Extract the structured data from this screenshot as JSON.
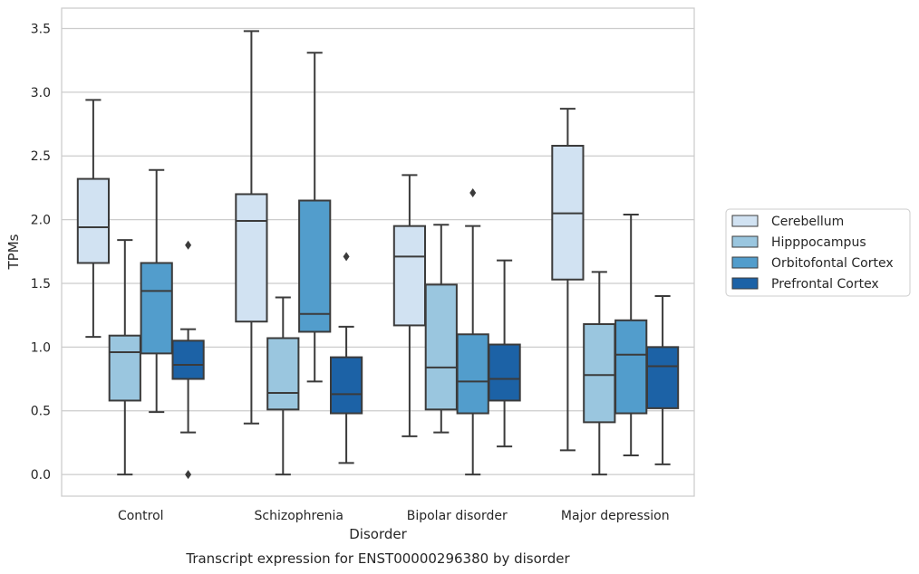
{
  "chart_data": {
    "type": "boxplot",
    "caption": "Transcript expression for ENST00000296380 by disorder",
    "xlabel": "Disorder",
    "ylabel": "TPMs",
    "ylim": [
      -0.17,
      3.66
    ],
    "yticks": [
      0.0,
      0.5,
      1.0,
      1.5,
      2.0,
      2.5,
      3.0,
      3.5
    ],
    "ytick_labels": [
      "0.0",
      "0.5",
      "1.0",
      "1.5",
      "2.0",
      "2.5",
      "3.0",
      "3.5"
    ],
    "grid": "horizontal",
    "legend_position": "outside-right",
    "categories": [
      "Control",
      "Schizophrenia",
      "Bipolar disorder",
      "Major depression"
    ],
    "series": [
      {
        "name": "Cerebellum",
        "color": "#d1e2f2",
        "boxes": [
          {
            "whislo": 1.08,
            "q1": 1.66,
            "med": 1.94,
            "q3": 2.32,
            "whishi": 2.94,
            "fliers": []
          },
          {
            "whislo": 0.4,
            "q1": 1.2,
            "med": 1.99,
            "q3": 2.2,
            "whishi": 3.48,
            "fliers": []
          },
          {
            "whislo": 0.3,
            "q1": 1.17,
            "med": 1.71,
            "q3": 1.95,
            "whishi": 2.35,
            "fliers": []
          },
          {
            "whislo": 0.19,
            "q1": 1.53,
            "med": 2.05,
            "q3": 2.58,
            "whishi": 2.87,
            "fliers": []
          }
        ]
      },
      {
        "name": "Hipppocampus",
        "color": "#9ac6df",
        "boxes": [
          {
            "whislo": 0.0,
            "q1": 0.58,
            "med": 0.96,
            "q3": 1.09,
            "whishi": 1.84,
            "fliers": []
          },
          {
            "whislo": 0.0,
            "q1": 0.51,
            "med": 0.64,
            "q3": 1.07,
            "whishi": 1.39,
            "fliers": []
          },
          {
            "whislo": 0.33,
            "q1": 0.51,
            "med": 0.84,
            "q3": 1.49,
            "whishi": 1.96,
            "fliers": []
          },
          {
            "whislo": 0.0,
            "q1": 0.41,
            "med": 0.78,
            "q3": 1.18,
            "whishi": 1.59,
            "fliers": []
          }
        ]
      },
      {
        "name": "Orbitofontal Cortex",
        "color": "#529dcc",
        "boxes": [
          {
            "whislo": 0.49,
            "q1": 0.95,
            "med": 1.44,
            "q3": 1.66,
            "whishi": 2.39,
            "fliers": []
          },
          {
            "whislo": 0.73,
            "q1": 1.12,
            "med": 1.26,
            "q3": 2.15,
            "whishi": 3.31,
            "fliers": []
          },
          {
            "whislo": 0.0,
            "q1": 0.48,
            "med": 0.73,
            "q3": 1.1,
            "whishi": 1.95,
            "fliers": [
              2.21
            ]
          },
          {
            "whislo": 0.15,
            "q1": 0.48,
            "med": 0.94,
            "q3": 1.21,
            "whishi": 2.04,
            "fliers": []
          }
        ]
      },
      {
        "name": "Prefrontal Cortex",
        "color": "#1c62a6",
        "boxes": [
          {
            "whislo": 0.33,
            "q1": 0.75,
            "med": 0.86,
            "q3": 1.05,
            "whishi": 1.14,
            "fliers": [
              1.8,
              0.0
            ]
          },
          {
            "whislo": 0.09,
            "q1": 0.48,
            "med": 0.63,
            "q3": 0.92,
            "whishi": 1.16,
            "fliers": [
              1.71
            ]
          },
          {
            "whislo": 0.22,
            "q1": 0.58,
            "med": 0.75,
            "q3": 1.02,
            "whishi": 1.68,
            "fliers": []
          },
          {
            "whislo": 0.08,
            "q1": 0.52,
            "med": 0.85,
            "q3": 1.0,
            "whishi": 1.4,
            "fliers": []
          }
        ]
      }
    ]
  },
  "colors": {
    "box_edge": "#3b3b3b",
    "grid": "#cccccc",
    "axes_frame": "#cccccc",
    "text": "#262626"
  }
}
